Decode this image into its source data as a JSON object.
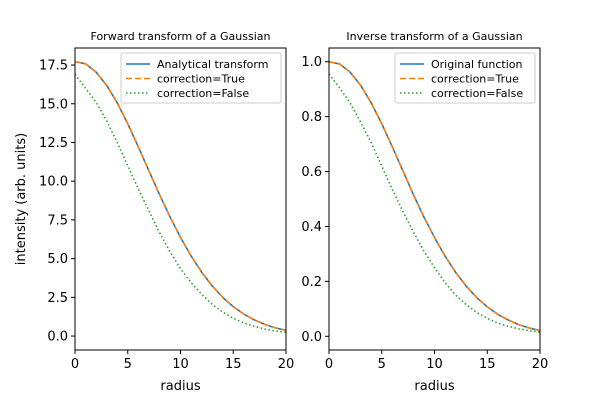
{
  "colors": {
    "blue": "#1f77b4",
    "orange": "#ff7f0e",
    "green": "#2ca02c"
  },
  "chart_data": [
    {
      "type": "line",
      "title": "Forward transform of a Gaussian",
      "xlabel": "radius",
      "ylabel": "intensity (arb. units)",
      "xlim": [
        0,
        20
      ],
      "ylim": [
        -0.9,
        18.6
      ],
      "xticks": [
        0,
        5,
        10,
        15,
        20
      ],
      "xtick_labels": [
        "0",
        "5",
        "10",
        "15",
        "20"
      ],
      "yticks": [
        0,
        2.5,
        5,
        7.5,
        10,
        12.5,
        15,
        17.5
      ],
      "ytick_labels": [
        "0.0",
        "2.5",
        "5.0",
        "7.5",
        "10.0",
        "12.5",
        "15.0",
        "17.5"
      ],
      "grid": false,
      "legend_position": "top-right",
      "x": [
        0,
        1,
        2,
        3,
        4,
        5,
        6,
        7,
        8,
        9,
        10,
        11,
        12,
        13,
        14,
        15,
        16,
        17,
        18,
        19,
        20
      ],
      "series": [
        {
          "name": "Analytical transform",
          "color": "blue",
          "dash": "solid",
          "values": [
            17.72,
            17.58,
            17.04,
            16.19,
            15.06,
            13.71,
            12.22,
            10.68,
            9.15,
            7.7,
            6.37,
            5.17,
            4.13,
            3.24,
            2.5,
            1.9,
            1.42,
            1.04,
            0.75,
            0.53,
            0.37
          ]
        },
        {
          "name": "correction=True",
          "color": "orange",
          "dash": "dashed",
          "values": [
            17.72,
            17.58,
            17.04,
            16.19,
            15.06,
            13.71,
            12.22,
            10.68,
            9.15,
            7.7,
            6.37,
            5.17,
            4.13,
            3.24,
            2.5,
            1.9,
            1.42,
            1.04,
            0.75,
            0.53,
            0.37
          ]
        },
        {
          "name": "correction=False",
          "color": "green",
          "dash": "dotted",
          "values": [
            16.9,
            16.0,
            15.1,
            13.9,
            12.5,
            11.0,
            9.5,
            8.1,
            6.7,
            5.45,
            4.35,
            3.45,
            2.7,
            2.05,
            1.55,
            1.15,
            0.85,
            0.62,
            0.45,
            0.32,
            0.25
          ]
        }
      ]
    },
    {
      "type": "line",
      "title": "Inverse transform of a Gaussian",
      "xlabel": "radius",
      "ylabel": "",
      "xlim": [
        0,
        20
      ],
      "ylim": [
        -0.05,
        1.05
      ],
      "xticks": [
        0,
        5,
        10,
        15,
        20
      ],
      "xtick_labels": [
        "0",
        "5",
        "10",
        "15",
        "20"
      ],
      "yticks": [
        0,
        0.2,
        0.4,
        0.6,
        0.8,
        1.0
      ],
      "ytick_labels": [
        "0.0",
        "0.2",
        "0.4",
        "0.6",
        "0.8",
        "1.0"
      ],
      "grid": false,
      "legend_position": "top-right",
      "x": [
        0,
        1,
        2,
        3,
        4,
        5,
        6,
        7,
        8,
        9,
        10,
        11,
        12,
        13,
        14,
        15,
        16,
        17,
        18,
        19,
        20
      ],
      "series": [
        {
          "name": "Original function",
          "color": "blue",
          "dash": "solid",
          "values": [
            1.0,
            0.992,
            0.962,
            0.914,
            0.85,
            0.774,
            0.69,
            0.603,
            0.516,
            0.434,
            0.36,
            0.292,
            0.233,
            0.183,
            0.141,
            0.107,
            0.08,
            0.059,
            0.042,
            0.03,
            0.021
          ]
        },
        {
          "name": "correction=True",
          "color": "orange",
          "dash": "dashed",
          "values": [
            1.0,
            0.992,
            0.962,
            0.914,
            0.85,
            0.774,
            0.69,
            0.603,
            0.516,
            0.434,
            0.36,
            0.292,
            0.233,
            0.183,
            0.141,
            0.107,
            0.08,
            0.059,
            0.042,
            0.03,
            0.021
          ]
        },
        {
          "name": "correction=False",
          "color": "green",
          "dash": "dotted",
          "values": [
            0.955,
            0.905,
            0.85,
            0.78,
            0.705,
            0.62,
            0.535,
            0.455,
            0.38,
            0.31,
            0.25,
            0.195,
            0.15,
            0.115,
            0.087,
            0.065,
            0.048,
            0.036,
            0.027,
            0.02,
            0.015
          ]
        }
      ]
    }
  ]
}
